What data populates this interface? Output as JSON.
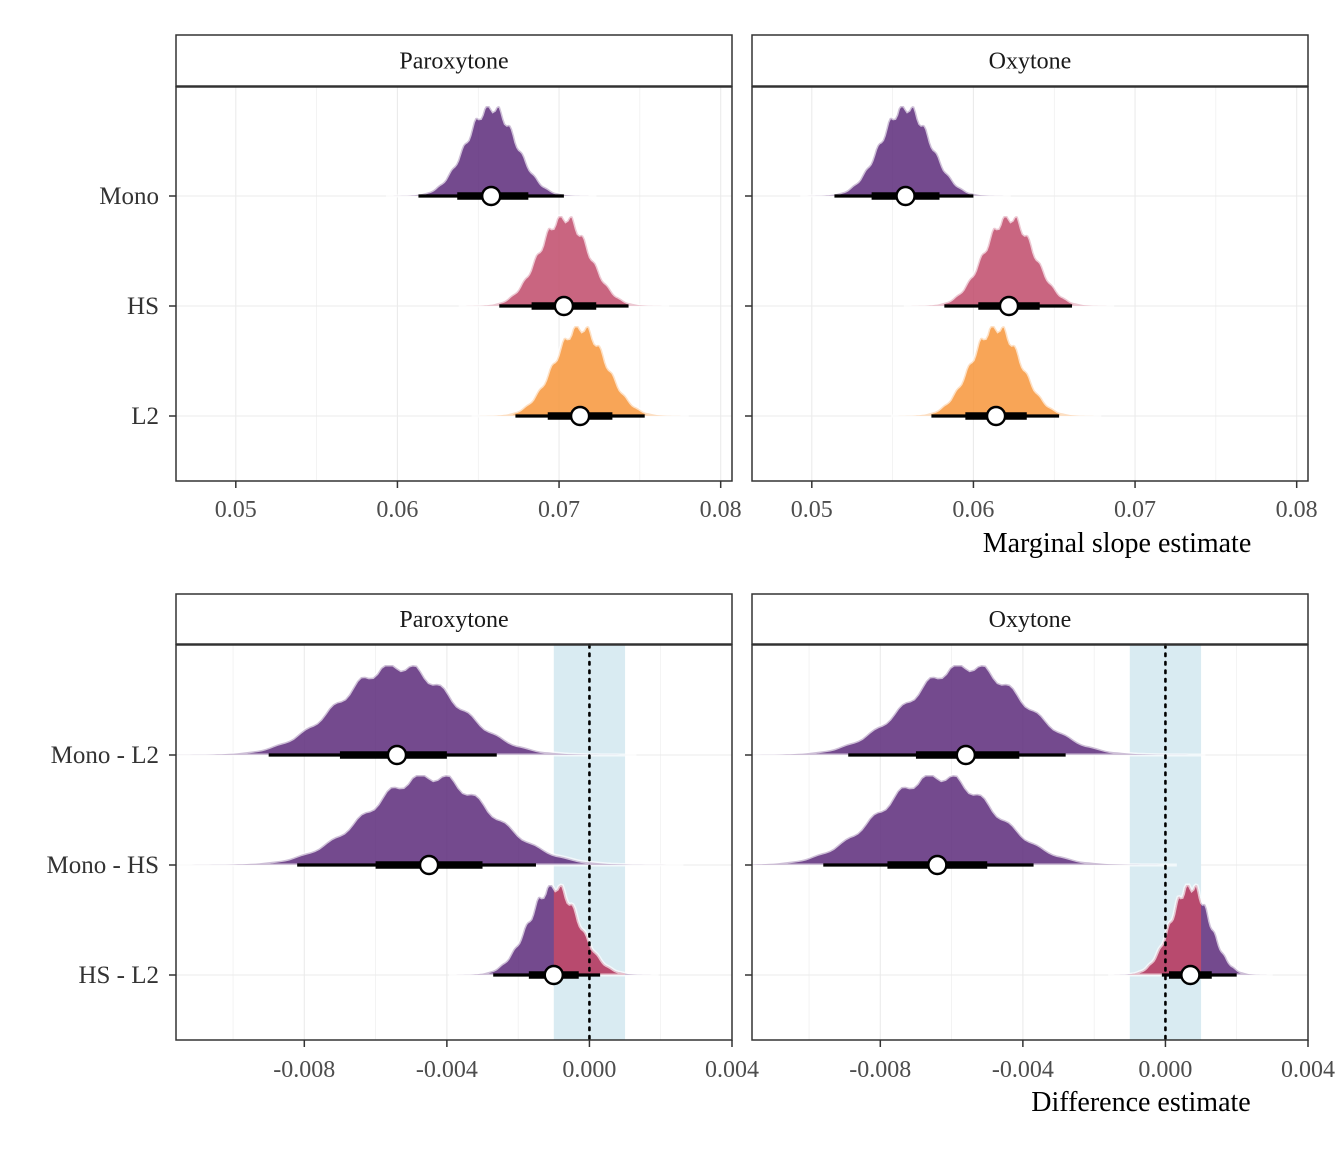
{
  "chart_data": [
    {
      "type": "density-interval",
      "panel": "top-left",
      "facet": "Paroxytone",
      "xlabel": "",
      "xlim": [
        0.0463,
        0.0807
      ],
      "xticks": [
        0.05,
        0.06,
        0.07,
        0.08
      ],
      "xtick_labels": [
        "0.05",
        "0.06",
        "0.07",
        "0.08"
      ],
      "grid": true,
      "categories": [
        "Mono",
        "HS",
        "L2"
      ],
      "series": [
        {
          "category": "Mono",
          "color": "#5c2a7a",
          "median": 0.0658,
          "sd": 0.00155,
          "ci66": [
            0.0637,
            0.0681
          ],
          "ci95": [
            0.0613,
            0.0703
          ]
        },
        {
          "category": "HS",
          "color": "#c04a6a",
          "median": 0.0703,
          "sd": 0.00155,
          "ci66": [
            0.0683,
            0.0723
          ],
          "ci95": [
            0.0663,
            0.0743
          ]
        },
        {
          "category": "L2",
          "color": "#f7953a",
          "median": 0.0713,
          "sd": 0.0016,
          "ci66": [
            0.0693,
            0.0733
          ],
          "ci95": [
            0.0673,
            0.0753
          ]
        }
      ]
    },
    {
      "type": "density-interval",
      "panel": "top-right",
      "facet": "Oxytone",
      "xlabel": "Marginal slope estimate",
      "xlim": [
        0.0463,
        0.0807
      ],
      "xticks": [
        0.05,
        0.06,
        0.07,
        0.08
      ],
      "xtick_labels": [
        "0.05",
        "0.06",
        "0.07",
        "0.08"
      ],
      "grid": true,
      "categories": [
        "Mono",
        "HS",
        "L2"
      ],
      "series": [
        {
          "category": "Mono",
          "color": "#5c2a7a",
          "median": 0.0558,
          "sd": 0.00155,
          "ci66": [
            0.0537,
            0.0579
          ],
          "ci95": [
            0.0514,
            0.06
          ]
        },
        {
          "category": "HS",
          "color": "#c04a6a",
          "median": 0.0622,
          "sd": 0.00155,
          "ci66": [
            0.0603,
            0.0641
          ],
          "ci95": [
            0.0582,
            0.0661
          ]
        },
        {
          "category": "L2",
          "color": "#f7953a",
          "median": 0.0614,
          "sd": 0.00155,
          "ci66": [
            0.0595,
            0.0633
          ],
          "ci95": [
            0.0574,
            0.0653
          ]
        }
      ]
    },
    {
      "type": "density-interval",
      "panel": "bottom-left",
      "facet": "Paroxytone",
      "xlabel": "",
      "xlim": [
        -0.0116,
        0.004
      ],
      "xticks": [
        -0.008,
        -0.004,
        0.0,
        0.004
      ],
      "xtick_labels": [
        "-0.008",
        "-0.004",
        "0.000",
        "0.004"
      ],
      "grid": true,
      "rope": [
        -0.001,
        0.001
      ],
      "reference_line": 0,
      "categories": [
        "Mono - L2",
        "Mono - HS",
        "HS - L2"
      ],
      "series": [
        {
          "category": "Mono - L2",
          "color": "#5c2a7a",
          "median": -0.0054,
          "sd": 0.0016,
          "ci66": [
            -0.007,
            -0.004
          ],
          "ci95": [
            -0.009,
            -0.0026
          ]
        },
        {
          "category": "Mono - HS",
          "color": "#5c2a7a",
          "median": -0.0045,
          "sd": 0.0017,
          "ci66": [
            -0.006,
            -0.003
          ],
          "ci95": [
            -0.0082,
            -0.0015
          ]
        },
        {
          "category": "HS - L2",
          "color": "#5c2a7a",
          "rope_color": "#c04a6a",
          "median": -0.001,
          "sd": 0.0007,
          "ci66": [
            -0.0017,
            -0.0003
          ],
          "ci95": [
            -0.0027,
            0.0003
          ]
        }
      ]
    },
    {
      "type": "density-interval",
      "panel": "bottom-right",
      "facet": "Oxytone",
      "xlabel": "Difference estimate",
      "xlim": [
        -0.0116,
        0.004
      ],
      "xticks": [
        -0.008,
        -0.004,
        0.0,
        0.004
      ],
      "xtick_labels": [
        "-0.008",
        "-0.004",
        "0.000",
        "0.004"
      ],
      "grid": true,
      "rope": [
        -0.001,
        0.001
      ],
      "reference_line": 0,
      "categories": [
        "Mono - L2",
        "Mono - HS",
        "HS - L2"
      ],
      "series": [
        {
          "category": "Mono - L2",
          "color": "#5c2a7a",
          "median": -0.0056,
          "sd": 0.0016,
          "ci66": [
            -0.007,
            -0.0041
          ],
          "ci95": [
            -0.0089,
            -0.0028
          ]
        },
        {
          "category": "Mono - HS",
          "color": "#5c2a7a",
          "median": -0.0064,
          "sd": 0.0016,
          "ci66": [
            -0.0078,
            -0.005
          ],
          "ci95": [
            -0.0096,
            -0.0037
          ]
        },
        {
          "category": "HS - L2",
          "color": "#5c2a7a",
          "rope_color": "#c04a6a",
          "median": 0.0007,
          "sd": 0.00055,
          "ci66": [
            0.0001,
            0.0013
          ],
          "ci95": [
            -0.0001,
            0.002
          ]
        }
      ]
    }
  ],
  "colors": {
    "mono": "#5c2a7a",
    "hs": "#c04a6a",
    "l2": "#f7953a",
    "rope_band": "#d9ebf2"
  }
}
